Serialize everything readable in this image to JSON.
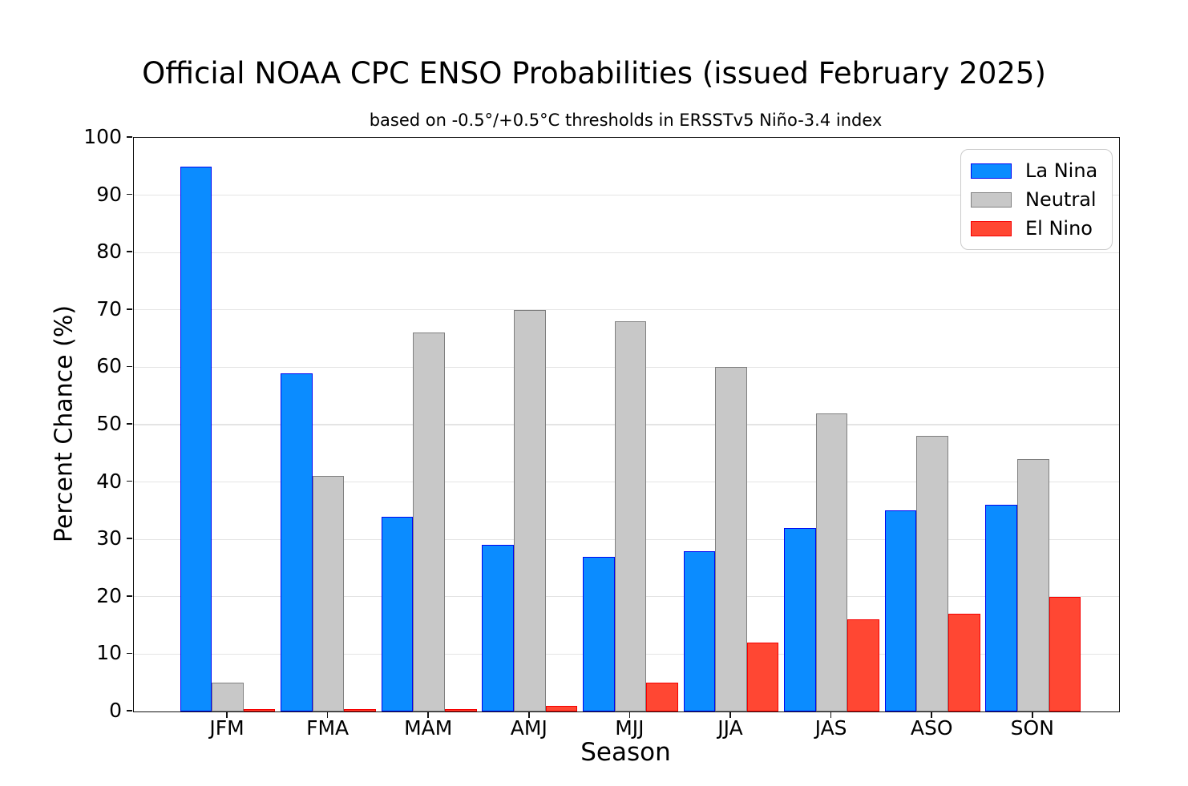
{
  "chart_data": {
    "type": "bar",
    "title": "Official NOAA CPC ENSO Probabilities (issued February 2025)",
    "subtitle": "based on -0.5°/+0.5°C thresholds in ERSSTv5 Niño-3.4 index",
    "xlabel": "Season",
    "ylabel": "Percent Chance (%)",
    "categories": [
      "JFM",
      "FMA",
      "MAM",
      "AMJ",
      "MJJ",
      "JJA",
      "JAS",
      "ASO",
      "SON"
    ],
    "series": [
      {
        "name": "La Nina",
        "fill": "#0b8cff",
        "edge": "#0004f0",
        "values": [
          95,
          59,
          34,
          29,
          27,
          28,
          32,
          35,
          36
        ]
      },
      {
        "name": "Neutral",
        "fill": "#c8c8c8",
        "edge": "#808080",
        "values": [
          5,
          41,
          66,
          70,
          68,
          60,
          52,
          48,
          44
        ]
      },
      {
        "name": "El Nino",
        "fill": "#ff4733",
        "edge": "#f60000",
        "values": [
          0,
          0,
          0,
          1,
          5,
          12,
          16,
          17,
          20
        ]
      }
    ],
    "ylim": [
      0,
      100
    ],
    "ytick_step": 10,
    "grid": true,
    "legend_position": "top-right"
  }
}
